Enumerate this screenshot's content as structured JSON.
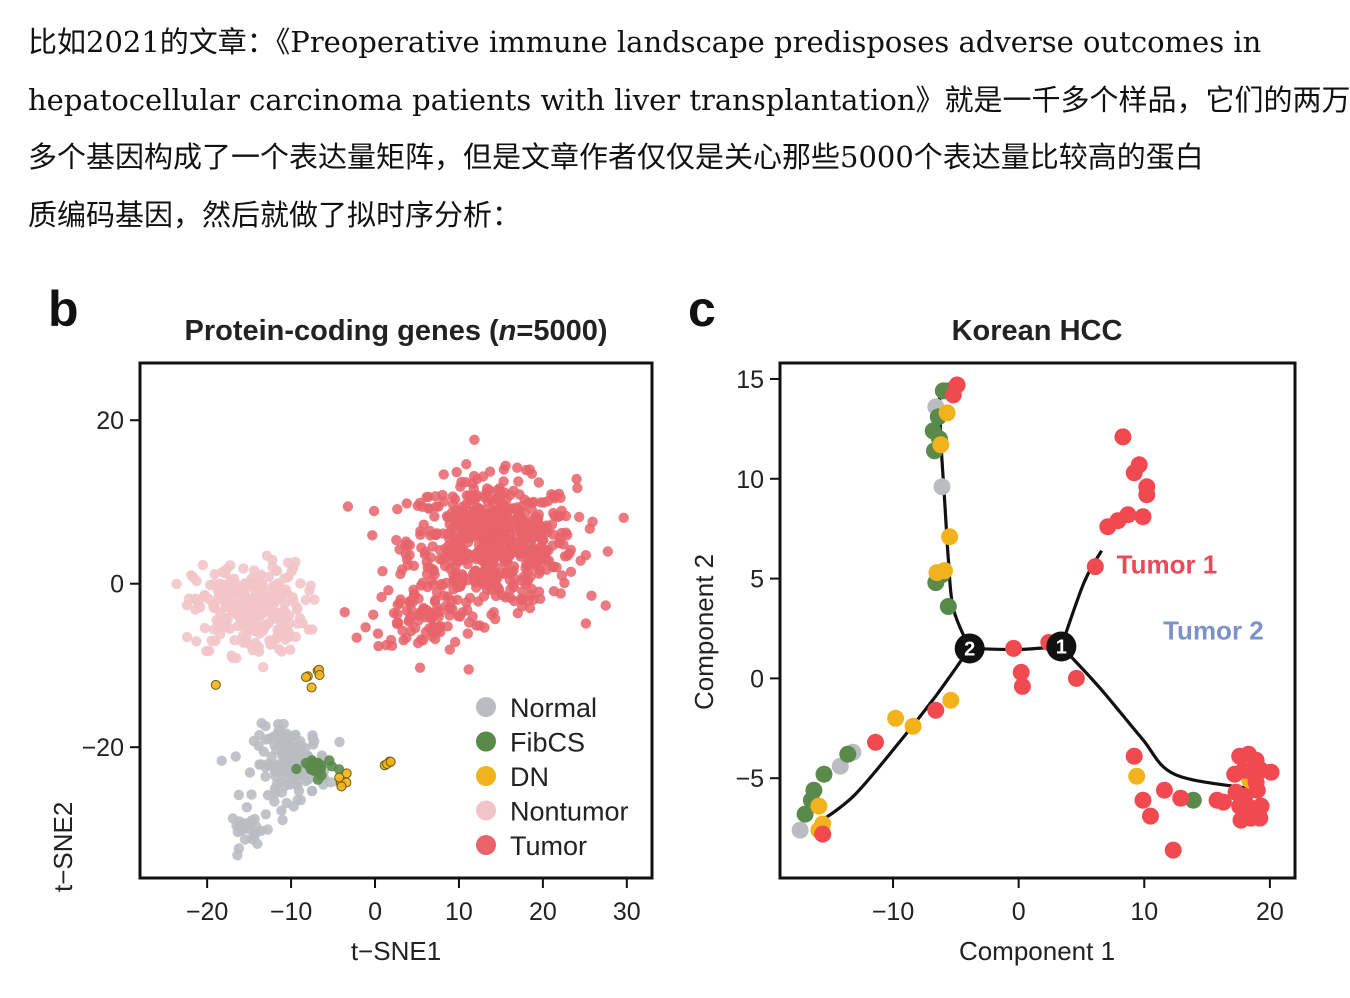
{
  "text": {
    "lines": [
      "比如2021的文章：《Preoperative immune landscape predisposes adverse outcomes in",
      "hepatocellular carcinoma patients with liver transplantation》就是一千多个样品，它们的两万",
      "多个基因构成了一个表达量矩阵，但是文章作者仅仅是关心那些5000个表达量比较高的蛋白",
      "质编码基因，然后就做了拟时序分析："
    ]
  },
  "colors": {
    "Normal": "#b9bdc2",
    "FibCS": "#5a8a4a",
    "DN": "#f2b21c",
    "Nontumor": "#f2c4c8",
    "Tumor": "#e8636a",
    "Tumor_bright": "#f04a50",
    "tumor1_label": "#e84a58",
    "tumor2_label": "#7a92c8"
  },
  "chart_data": [
    {
      "type": "scatter",
      "panel": "b",
      "title_prefix": "Protein-coding genes (",
      "title_italic": "n",
      "title_suffix": "=5000)",
      "xlabel": "t−SNE1",
      "ylabel": "t−SNE2",
      "xlim": [
        -28,
        33
      ],
      "ylim": [
        -36,
        27
      ],
      "xticks": [
        -20,
        -10,
        0,
        10,
        20,
        30
      ],
      "yticks": [
        -20,
        0,
        20
      ],
      "xtick_labels": [
        "−20",
        "−10",
        "0",
        "10",
        "20",
        "30"
      ],
      "ytick_labels": [
        "−20",
        "0",
        "20"
      ],
      "legend": [
        "Normal",
        "FibCS",
        "DN",
        "Nontumor",
        "Tumor"
      ],
      "legend_position": "bottom-right",
      "grid": false,
      "clusters": [
        {
          "group": "Tumor",
          "center": [
            14,
            5
          ],
          "spread": [
            9,
            7
          ],
          "n": 620
        },
        {
          "group": "Tumor",
          "center": [
            6,
            -4
          ],
          "spread": [
            6,
            4
          ],
          "n": 90
        },
        {
          "group": "Nontumor",
          "center": [
            -15,
            -3
          ],
          "spread": [
            6,
            5
          ],
          "n": 260
        },
        {
          "group": "Normal",
          "center": [
            -10,
            -22
          ],
          "spread": [
            4,
            4
          ],
          "n": 150
        },
        {
          "group": "Normal",
          "center": [
            -15,
            -30
          ],
          "spread": [
            2,
            2
          ],
          "n": 25
        },
        {
          "group": "FibCS",
          "center": [
            -7,
            -22.5
          ],
          "spread": [
            1.8,
            1.2
          ],
          "n": 22
        },
        {
          "group": "DN",
          "center": [
            -7.5,
            -11
          ],
          "spread": [
            1,
            1.3
          ],
          "n": 6
        },
        {
          "group": "DN",
          "center": [
            -4,
            -24
          ],
          "spread": [
            1,
            1
          ],
          "n": 5
        },
        {
          "group": "DN",
          "center": [
            1.5,
            -22
          ],
          "spread": [
            0.6,
            0.4
          ],
          "n": 4
        },
        {
          "group": "DN",
          "center": [
            -19,
            -12.5
          ],
          "spread": [
            0.2,
            0.2
          ],
          "n": 1
        }
      ]
    },
    {
      "type": "scatter",
      "panel": "c",
      "title": "Korean HCC",
      "xlabel": "Component 1",
      "ylabel": "Component 2",
      "xlim": [
        -19,
        22
      ],
      "ylim": [
        -10,
        15.8
      ],
      "xticks": [
        -10,
        0,
        10,
        20
      ],
      "yticks": [
        -5,
        0,
        5,
        10,
        15
      ],
      "xtick_labels": [
        "−10",
        "0",
        "10",
        "20"
      ],
      "ytick_labels": [
        "−5",
        "0",
        "5",
        "10",
        "15"
      ],
      "grid": false,
      "annotations": [
        {
          "text": "Tumor 1",
          "x": 7.8,
          "y": 5.7
        },
        {
          "text": "Tumor 2",
          "x": 11.5,
          "y": 2.4
        }
      ],
      "branch_nodes": [
        {
          "label": "2",
          "x": -3.9,
          "y": 1.5
        },
        {
          "label": "1",
          "x": 3.4,
          "y": 1.6
        }
      ],
      "trajectory": [
        [
          [
            -6.3,
            14.5
          ],
          [
            -6.2,
            12
          ],
          [
            -5.9,
            9
          ],
          [
            -5.6,
            6
          ],
          [
            -5.2,
            3.5
          ],
          [
            -3.9,
            1.5
          ]
        ],
        [
          [
            -3.9,
            1.5
          ],
          [
            -6.5,
            -0.8
          ],
          [
            -9.5,
            -3.2
          ],
          [
            -13,
            -5.8
          ],
          [
            -15.6,
            -7.1
          ]
        ],
        [
          [
            -3.9,
            1.5
          ],
          [
            0,
            1.45
          ],
          [
            3.4,
            1.6
          ]
        ],
        [
          [
            3.4,
            1.6
          ],
          [
            5.2,
            4.8
          ],
          [
            6.6,
            6.4
          ]
        ],
        [
          [
            3.4,
            1.6
          ],
          [
            6.5,
            -0.5
          ],
          [
            9.8,
            -3
          ],
          [
            12.4,
            -4.8
          ],
          [
            18.2,
            -5.5
          ]
        ]
      ],
      "points": [
        {
          "group": "Normal",
          "x": -6.6,
          "y": 13.6
        },
        {
          "group": "Normal",
          "x": -6.1,
          "y": 9.6
        },
        {
          "group": "Normal",
          "x": -17.4,
          "y": -7.6
        },
        {
          "group": "Normal",
          "x": -14.2,
          "y": -4.4
        },
        {
          "group": "Normal",
          "x": -13.2,
          "y": -3.7
        },
        {
          "group": "FibCS",
          "x": -6.0,
          "y": 14.4
        },
        {
          "group": "FibCS",
          "x": -5.6,
          "y": 14.4
        },
        {
          "group": "FibCS",
          "x": -6.4,
          "y": 13.1
        },
        {
          "group": "FibCS",
          "x": -6.8,
          "y": 12.4
        },
        {
          "group": "FibCS",
          "x": -6.3,
          "y": 12.0
        },
        {
          "group": "FibCS",
          "x": -6.7,
          "y": 11.4
        },
        {
          "group": "FibCS",
          "x": -6.6,
          "y": 4.8
        },
        {
          "group": "FibCS",
          "x": -6.1,
          "y": 5.2
        },
        {
          "group": "FibCS",
          "x": -5.6,
          "y": 3.6
        },
        {
          "group": "FibCS",
          "x": -13.6,
          "y": -3.8
        },
        {
          "group": "FibCS",
          "x": -15.5,
          "y": -4.8
        },
        {
          "group": "FibCS",
          "x": -16.3,
          "y": -5.6
        },
        {
          "group": "FibCS",
          "x": -16.5,
          "y": -6.1
        },
        {
          "group": "FibCS",
          "x": -17.0,
          "y": -6.8
        },
        {
          "group": "FibCS",
          "x": 13.9,
          "y": -6.1
        },
        {
          "group": "DN",
          "x": -5.7,
          "y": 13.3
        },
        {
          "group": "DN",
          "x": -6.2,
          "y": 11.7
        },
        {
          "group": "DN",
          "x": -5.5,
          "y": 7.1
        },
        {
          "group": "DN",
          "x": -6.5,
          "y": 5.3
        },
        {
          "group": "DN",
          "x": -5.9,
          "y": 5.4
        },
        {
          "group": "DN",
          "x": -5.4,
          "y": -1.1
        },
        {
          "group": "DN",
          "x": -9.8,
          "y": -2.0
        },
        {
          "group": "DN",
          "x": -8.4,
          "y": -2.4
        },
        {
          "group": "DN",
          "x": -15.9,
          "y": -6.4
        },
        {
          "group": "DN",
          "x": -15.6,
          "y": -7.3
        },
        {
          "group": "DN",
          "x": -15.9,
          "y": -7.6
        },
        {
          "group": "DN",
          "x": 9.4,
          "y": -4.9
        },
        {
          "group": "DN",
          "x": 18.4,
          "y": -5.1
        },
        {
          "group": "Tumor_bright",
          "x": -4.9,
          "y": 14.7
        },
        {
          "group": "Tumor_bright",
          "x": -5.2,
          "y": 14.2
        },
        {
          "group": "Tumor_bright",
          "x": -6.6,
          "y": -1.6
        },
        {
          "group": "Tumor_bright",
          "x": -11.4,
          "y": -3.2
        },
        {
          "group": "Tumor_bright",
          "x": -15.6,
          "y": -7.8
        },
        {
          "group": "Tumor_bright",
          "x": -0.4,
          "y": 1.5
        },
        {
          "group": "Tumor_bright",
          "x": 0.2,
          "y": 0.3
        },
        {
          "group": "Tumor_bright",
          "x": 0.3,
          "y": -0.4
        },
        {
          "group": "Tumor_bright",
          "x": 2.4,
          "y": 1.8
        },
        {
          "group": "Tumor_bright",
          "x": 4.6,
          "y": 0.0
        },
        {
          "group": "Tumor_bright",
          "x": 6.1,
          "y": 5.6
        },
        {
          "group": "Tumor_bright",
          "x": 8.3,
          "y": 12.1
        },
        {
          "group": "Tumor_bright",
          "x": 9.6,
          "y": 10.7
        },
        {
          "group": "Tumor_bright",
          "x": 9.2,
          "y": 10.3
        },
        {
          "group": "Tumor_bright",
          "x": 10.2,
          "y": 9.6
        },
        {
          "group": "Tumor_bright",
          "x": 10.2,
          "y": 9.2
        },
        {
          "group": "Tumor_bright",
          "x": 7.1,
          "y": 7.6
        },
        {
          "group": "Tumor_bright",
          "x": 7.9,
          "y": 7.9
        },
        {
          "group": "Tumor_bright",
          "x": 8.7,
          "y": 8.2
        },
        {
          "group": "Tumor_bright",
          "x": 9.9,
          "y": 8.1
        },
        {
          "group": "Tumor_bright",
          "x": 9.2,
          "y": -3.9
        },
        {
          "group": "Tumor_bright",
          "x": 9.9,
          "y": -6.1
        },
        {
          "group": "Tumor_bright",
          "x": 10.5,
          "y": -6.9
        },
        {
          "group": "Tumor_bright",
          "x": 11.6,
          "y": -5.6
        },
        {
          "group": "Tumor_bright",
          "x": 12.9,
          "y": -6.0
        },
        {
          "group": "Tumor_bright",
          "x": 12.3,
          "y": -8.6
        },
        {
          "group": "Tumor_bright",
          "x": 15.8,
          "y": -6.1
        },
        {
          "group": "Tumor_bright",
          "x": 16.3,
          "y": -6.2
        },
        {
          "group": "Tumor_bright",
          "x": 17.2,
          "y": -4.8
        },
        {
          "group": "Tumor_bright",
          "x": 17.6,
          "y": -3.9
        },
        {
          "group": "Tumor_bright",
          "x": 18.3,
          "y": -3.8
        },
        {
          "group": "Tumor_bright",
          "x": 18.9,
          "y": -4.1
        },
        {
          "group": "Tumor_bright",
          "x": 17.9,
          "y": -4.6
        },
        {
          "group": "Tumor_bright",
          "x": 18.6,
          "y": -4.7
        },
        {
          "group": "Tumor_bright",
          "x": 19.3,
          "y": -4.6
        },
        {
          "group": "Tumor_bright",
          "x": 20.1,
          "y": -4.7
        },
        {
          "group": "Tumor_bright",
          "x": 17.3,
          "y": -5.7
        },
        {
          "group": "Tumor_bright",
          "x": 18.0,
          "y": -5.9
        },
        {
          "group": "Tumor_bright",
          "x": 19.0,
          "y": -5.6
        },
        {
          "group": "Tumor_bright",
          "x": 17.6,
          "y": -6.4
        },
        {
          "group": "Tumor_bright",
          "x": 18.5,
          "y": -6.5
        },
        {
          "group": "Tumor_bright",
          "x": 19.3,
          "y": -6.4
        },
        {
          "group": "Tumor_bright",
          "x": 17.7,
          "y": -7.1
        },
        {
          "group": "Tumor_bright",
          "x": 18.5,
          "y": -7.0
        },
        {
          "group": "Tumor_bright",
          "x": 19.2,
          "y": -7.0
        },
        {
          "group": "Tumor_bright",
          "x": 18.9,
          "y": -5.2
        }
      ]
    }
  ]
}
